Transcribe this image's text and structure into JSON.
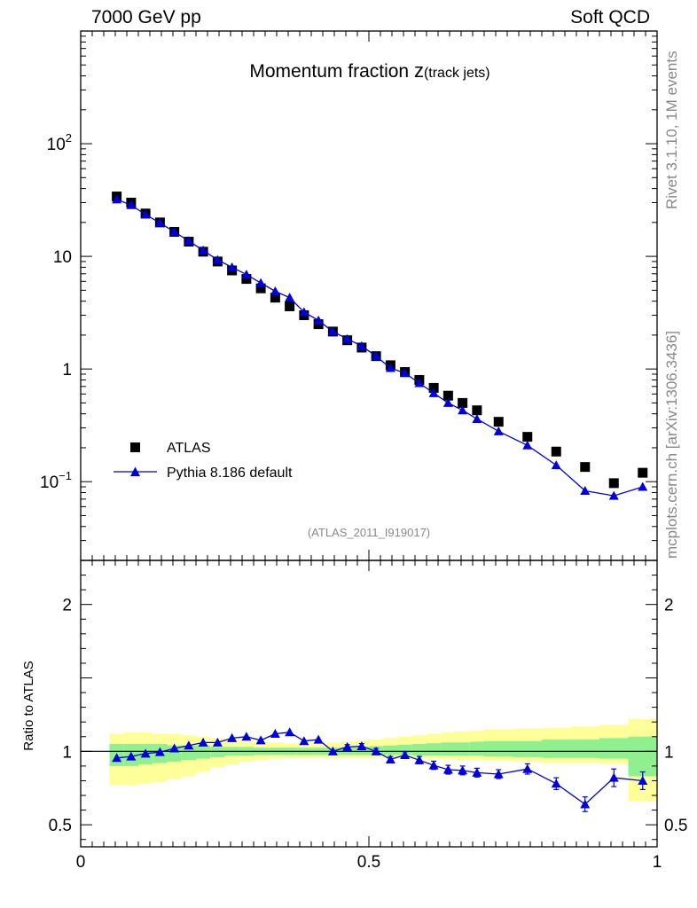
{
  "header": {
    "left": "7000 GeV pp",
    "right": "Soft QCD"
  },
  "side_labels": {
    "rivet": "Rivet 3.1.10,  1M events",
    "mcplots": "mcplots.cern.ch [arXiv:1306.3436]"
  },
  "colors": {
    "mc": "#0000dd",
    "data": "#000000",
    "band_inner": "#90f090",
    "band_outer": "#ffff99",
    "label_gray": "#888888"
  },
  "chart_data": {
    "type": "scatter",
    "title_main": "Momentum fraction ",
    "title_var": "z",
    "title_sub": "(track jets)",
    "analysis_id": "(ATLAS_2011_I919017)",
    "xlim": [
      0,
      1
    ],
    "main_ylim": [
      0.02,
      1000
    ],
    "main_yticks": [
      {
        "v": 100,
        "base": "10",
        "exp": "2"
      },
      {
        "v": 10,
        "base": "10",
        "exp": ""
      },
      {
        "v": 1,
        "base": "1",
        "exp": ""
      },
      {
        "v": 0.1,
        "base": "10",
        "exp": "−1"
      }
    ],
    "ratio_ylim": [
      0.35,
      2.3
    ],
    "ratio_yticks": [
      {
        "v": 2,
        "label": "2"
      },
      {
        "v": 1,
        "label": "1"
      },
      {
        "v": 0.5,
        "label": "0.5"
      }
    ],
    "xticks": [
      {
        "v": 0,
        "label": "0"
      },
      {
        "v": 0.5,
        "label": "0.5"
      },
      {
        "v": 1,
        "label": "1"
      }
    ],
    "ratio_ylabel": "Ratio to ATLAS",
    "legend": {
      "position": "bottom-left",
      "entries": [
        "ATLAS",
        "Pythia 8.186 default"
      ]
    },
    "bins": [
      [
        0.05,
        0.075
      ],
      [
        0.075,
        0.1
      ],
      [
        0.1,
        0.125
      ],
      [
        0.125,
        0.15
      ],
      [
        0.15,
        0.175
      ],
      [
        0.175,
        0.2
      ],
      [
        0.2,
        0.225
      ],
      [
        0.225,
        0.25
      ],
      [
        0.25,
        0.275
      ],
      [
        0.275,
        0.3
      ],
      [
        0.3,
        0.325
      ],
      [
        0.325,
        0.35
      ],
      [
        0.35,
        0.375
      ],
      [
        0.375,
        0.4
      ],
      [
        0.4,
        0.425
      ],
      [
        0.425,
        0.45
      ],
      [
        0.45,
        0.475
      ],
      [
        0.475,
        0.5
      ],
      [
        0.5,
        0.525
      ],
      [
        0.525,
        0.55
      ],
      [
        0.55,
        0.575
      ],
      [
        0.575,
        0.6
      ],
      [
        0.6,
        0.625
      ],
      [
        0.625,
        0.65
      ],
      [
        0.65,
        0.675
      ],
      [
        0.675,
        0.7
      ],
      [
        0.7,
        0.75
      ],
      [
        0.75,
        0.8
      ],
      [
        0.8,
        0.85
      ],
      [
        0.85,
        0.9
      ],
      [
        0.9,
        0.95
      ],
      [
        0.95,
        1.0
      ]
    ],
    "x": [
      0.0625,
      0.0875,
      0.1125,
      0.1375,
      0.1625,
      0.1875,
      0.2125,
      0.2375,
      0.2625,
      0.2875,
      0.3125,
      0.3375,
      0.3625,
      0.3875,
      0.4125,
      0.4375,
      0.4625,
      0.4875,
      0.5125,
      0.5375,
      0.5625,
      0.5875,
      0.6125,
      0.6375,
      0.6625,
      0.6875,
      0.725,
      0.775,
      0.825,
      0.875,
      0.925,
      0.975
    ],
    "series": [
      {
        "name": "ATLAS",
        "marker": "square",
        "values": [
          34,
          30,
          24,
          20,
          16.5,
          13.5,
          11,
          9,
          7.5,
          6.3,
          5.2,
          4.3,
          3.6,
          3.0,
          2.5,
          2.15,
          1.8,
          1.55,
          1.3,
          1.08,
          0.94,
          0.8,
          0.68,
          0.58,
          0.5,
          0.43,
          0.34,
          0.25,
          0.185,
          0.135,
          0.097,
          0.12
        ]
      },
      {
        "name": "Pythia 8.186 default",
        "marker": "triangle",
        "values": [
          32,
          28.5,
          23.5,
          19.8,
          16.5,
          13.7,
          11.3,
          9.3,
          8.0,
          6.9,
          5.8,
          4.9,
          4.3,
          3.2,
          2.7,
          2.15,
          1.85,
          1.6,
          1.3,
          1.02,
          0.92,
          0.75,
          0.61,
          0.5,
          0.43,
          0.36,
          0.28,
          0.21,
          0.14,
          0.083,
          0.075,
          0.09
        ]
      }
    ],
    "ratio": [
      0.955,
      0.965,
      0.985,
      0.995,
      1.02,
      1.04,
      1.06,
      1.06,
      1.09,
      1.1,
      1.075,
      1.12,
      1.13,
      1.07,
      1.08,
      1.0,
      1.03,
      1.035,
      1.0,
      0.945,
      0.975,
      0.94,
      0.905,
      0.875,
      0.87,
      0.855,
      0.845,
      0.88,
      0.78,
      0.64,
      0.82,
      0.8
    ],
    "ratio_err": [
      0.01,
      0.01,
      0.01,
      0.01,
      0.01,
      0.01,
      0.01,
      0.01,
      0.01,
      0.01,
      0.01,
      0.01,
      0.01,
      0.012,
      0.012,
      0.014,
      0.016,
      0.018,
      0.02,
      0.02,
      0.022,
      0.025,
      0.028,
      0.03,
      0.03,
      0.03,
      0.03,
      0.035,
      0.04,
      0.05,
      0.06,
      0.06
    ],
    "band_inner": [
      [
        0.9,
        1.05
      ],
      [
        0.9,
        1.05
      ],
      [
        0.91,
        1.05
      ],
      [
        0.92,
        1.05
      ],
      [
        0.93,
        1.04
      ],
      [
        0.94,
        1.04
      ],
      [
        0.95,
        1.04
      ],
      [
        0.96,
        1.03
      ],
      [
        0.97,
        1.03
      ],
      [
        0.97,
        1.03
      ],
      [
        0.975,
        1.025
      ],
      [
        0.975,
        1.025
      ],
      [
        0.975,
        1.025
      ],
      [
        0.975,
        1.025
      ],
      [
        0.975,
        1.025
      ],
      [
        0.975,
        1.025
      ],
      [
        0.975,
        1.03
      ],
      [
        0.975,
        1.03
      ],
      [
        0.975,
        1.035
      ],
      [
        0.975,
        1.04
      ],
      [
        0.975,
        1.045
      ],
      [
        0.97,
        1.05
      ],
      [
        0.97,
        1.055
      ],
      [
        0.97,
        1.06
      ],
      [
        0.97,
        1.06
      ],
      [
        0.97,
        1.065
      ],
      [
        0.965,
        1.07
      ],
      [
        0.96,
        1.07
      ],
      [
        0.955,
        1.08
      ],
      [
        0.955,
        1.08
      ],
      [
        0.95,
        1.09
      ],
      [
        0.83,
        1.1
      ]
    ],
    "band_outer": [
      [
        0.77,
        1.12
      ],
      [
        0.77,
        1.13
      ],
      [
        0.78,
        1.13
      ],
      [
        0.79,
        1.12
      ],
      [
        0.81,
        1.12
      ],
      [
        0.83,
        1.11
      ],
      [
        0.86,
        1.1
      ],
      [
        0.89,
        1.09
      ],
      [
        0.91,
        1.08
      ],
      [
        0.93,
        1.07
      ],
      [
        0.94,
        1.065
      ],
      [
        0.95,
        1.06
      ],
      [
        0.955,
        1.055
      ],
      [
        0.955,
        1.055
      ],
      [
        0.955,
        1.055
      ],
      [
        0.955,
        1.06
      ],
      [
        0.955,
        1.065
      ],
      [
        0.955,
        1.07
      ],
      [
        0.955,
        1.08
      ],
      [
        0.955,
        1.09
      ],
      [
        0.955,
        1.1
      ],
      [
        0.95,
        1.11
      ],
      [
        0.95,
        1.12
      ],
      [
        0.945,
        1.13
      ],
      [
        0.94,
        1.135
      ],
      [
        0.94,
        1.14
      ],
      [
        0.935,
        1.15
      ],
      [
        0.93,
        1.155
      ],
      [
        0.92,
        1.16
      ],
      [
        0.92,
        1.17
      ],
      [
        0.915,
        1.18
      ],
      [
        0.66,
        1.22
      ]
    ]
  }
}
